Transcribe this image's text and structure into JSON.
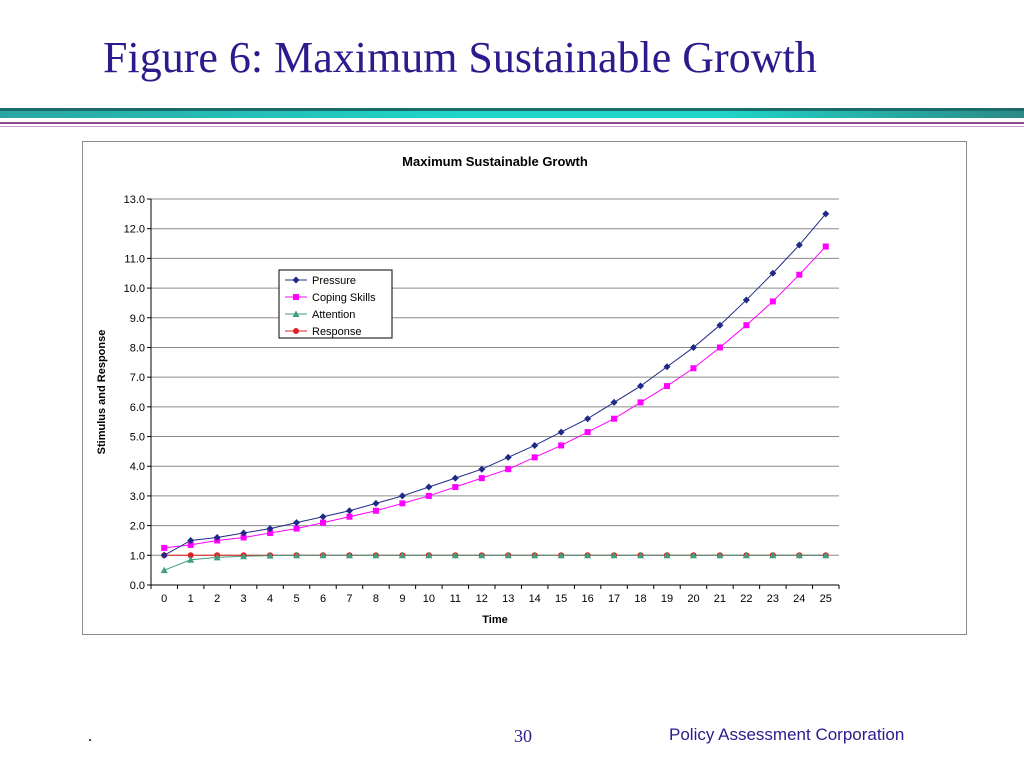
{
  "slide": {
    "title": "Figure 6: Maximum Sustainable Growth",
    "footer_dot": ".",
    "page_number": "30",
    "company": "Policy Assessment Corporation"
  },
  "colors": {
    "title": "#2d1a8c",
    "pressure": "#1f2a86",
    "coping_skills": "#ff00ff",
    "attention": "#3f9f7f",
    "response": "#e02020"
  },
  "chart_data": {
    "type": "line",
    "title": "Maximum Sustainable Growth",
    "xlabel": "Time",
    "ylabel": "Stimulus and Response",
    "x": [
      0,
      1,
      2,
      3,
      4,
      5,
      6,
      7,
      8,
      9,
      10,
      11,
      12,
      13,
      14,
      15,
      16,
      17,
      18,
      19,
      20,
      21,
      22,
      23,
      24,
      25
    ],
    "ylim": [
      0,
      13
    ],
    "ytick_step": 1,
    "grid": true,
    "legend_position": "upper-left",
    "series": [
      {
        "name": "Pressure",
        "marker": "diamond",
        "color": "#1f2a86",
        "values": [
          1.0,
          1.5,
          1.6,
          1.75,
          1.9,
          2.1,
          2.3,
          2.5,
          2.75,
          3.0,
          3.3,
          3.6,
          3.9,
          4.3,
          4.7,
          5.15,
          5.6,
          6.15,
          6.7,
          7.35,
          8.0,
          8.75,
          9.6,
          10.5,
          11.45,
          12.5
        ]
      },
      {
        "name": "Coping Skills",
        "marker": "square",
        "color": "#ff00ff",
        "values": [
          1.25,
          1.35,
          1.5,
          1.6,
          1.75,
          1.9,
          2.1,
          2.3,
          2.5,
          2.75,
          3.0,
          3.3,
          3.6,
          3.9,
          4.3,
          4.7,
          5.15,
          5.6,
          6.15,
          6.7,
          7.3,
          8.0,
          8.75,
          9.55,
          10.45,
          11.4
        ]
      },
      {
        "name": "Attention",
        "marker": "triangle",
        "color": "#3f9f7f",
        "values": [
          0.5,
          0.85,
          0.93,
          0.97,
          0.99,
          1.0,
          1.0,
          1.0,
          1.0,
          1.0,
          1.0,
          1.0,
          1.0,
          1.0,
          1.0,
          1.0,
          1.0,
          1.0,
          1.0,
          1.0,
          1.0,
          1.0,
          1.0,
          1.0,
          1.0,
          1.0
        ]
      },
      {
        "name": "Response",
        "marker": "circle",
        "color": "#e02020",
        "values": [
          1.0,
          1.0,
          1.0,
          1.0,
          1.0,
          1.0,
          1.0,
          1.0,
          1.0,
          1.0,
          1.0,
          1.0,
          1.0,
          1.0,
          1.0,
          1.0,
          1.0,
          1.0,
          1.0,
          1.0,
          1.0,
          1.0,
          1.0,
          1.0,
          1.0,
          1.0
        ]
      }
    ]
  }
}
